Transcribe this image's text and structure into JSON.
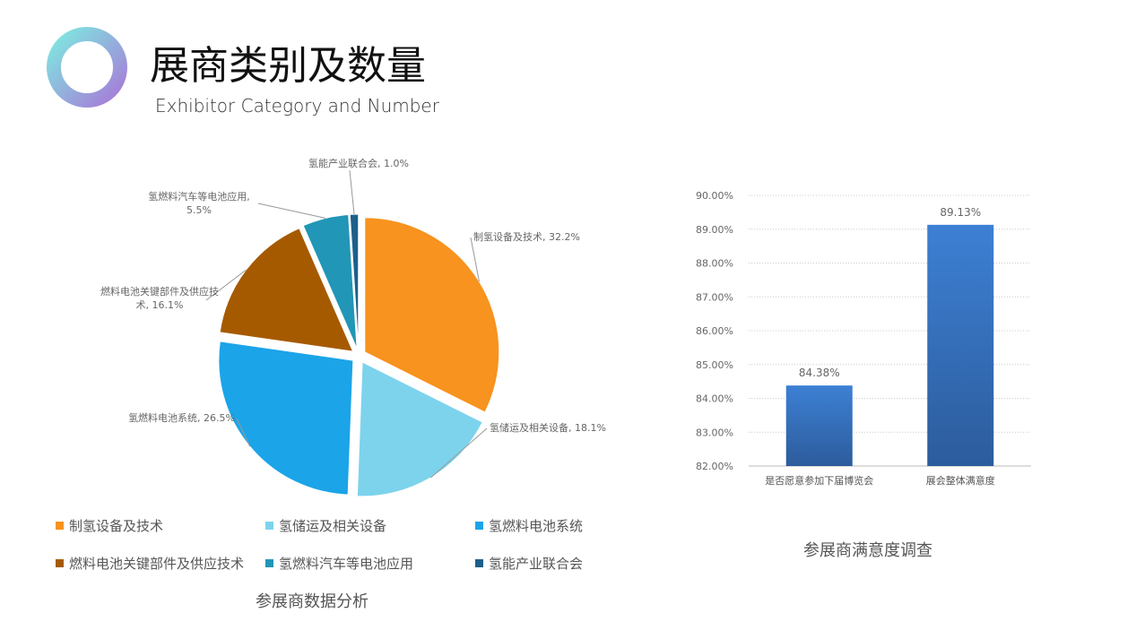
{
  "header": {
    "title": "展商类别及数量",
    "subtitle": "Exhibitor Category and Number"
  },
  "chart_data": [
    {
      "type": "pie",
      "title": "参展商数据分析",
      "categories": [
        "制氢设备及技术",
        "氢储运及相关设备",
        "氢燃料电池系统",
        "燃料电池关键部件及供应技术",
        "氢燃料汽车等电池应用",
        "氢能产业联合会"
      ],
      "values": [
        32.2,
        18.1,
        26.5,
        16.1,
        5.5,
        1.0
      ],
      "value_labels": [
        "制氢设备及技术, 32.2%",
        "氢储运及相关设备, 18.1%",
        "氢燃料电池系统, 26.5%",
        "燃料电池关键部件及供应技\n术, 16.1%",
        "氢燃料汽车等电池应用,\n5.5%",
        "氢能产业联合会, 1.0%"
      ],
      "colors": [
        "#f7931e",
        "#7dd3ec",
        "#1ba4e8",
        "#a65a00",
        "#2196b6",
        "#1d5f8a"
      ]
    },
    {
      "type": "bar",
      "title": "参展商满意度调查",
      "categories": [
        "是否愿意参加下届博览会",
        "展会整体满意度"
      ],
      "values": [
        84.38,
        89.13
      ],
      "value_labels": [
        "84.38%",
        "89.13%"
      ],
      "color": "#3774c4",
      "ylim": [
        82,
        90
      ],
      "yticks": [
        {
          "value": 82,
          "label": "82.00%"
        },
        {
          "value": 83,
          "label": "83.00%"
        },
        {
          "value": 84,
          "label": "84.00%"
        },
        {
          "value": 85,
          "label": "85.00%"
        },
        {
          "value": 86,
          "label": "86.00%"
        },
        {
          "value": 87,
          "label": "87.00%"
        },
        {
          "value": 88,
          "label": "88.00%"
        },
        {
          "value": 89,
          "label": "89.00%"
        },
        {
          "value": 90,
          "label": "90.00%"
        }
      ],
      "grid": true
    }
  ]
}
